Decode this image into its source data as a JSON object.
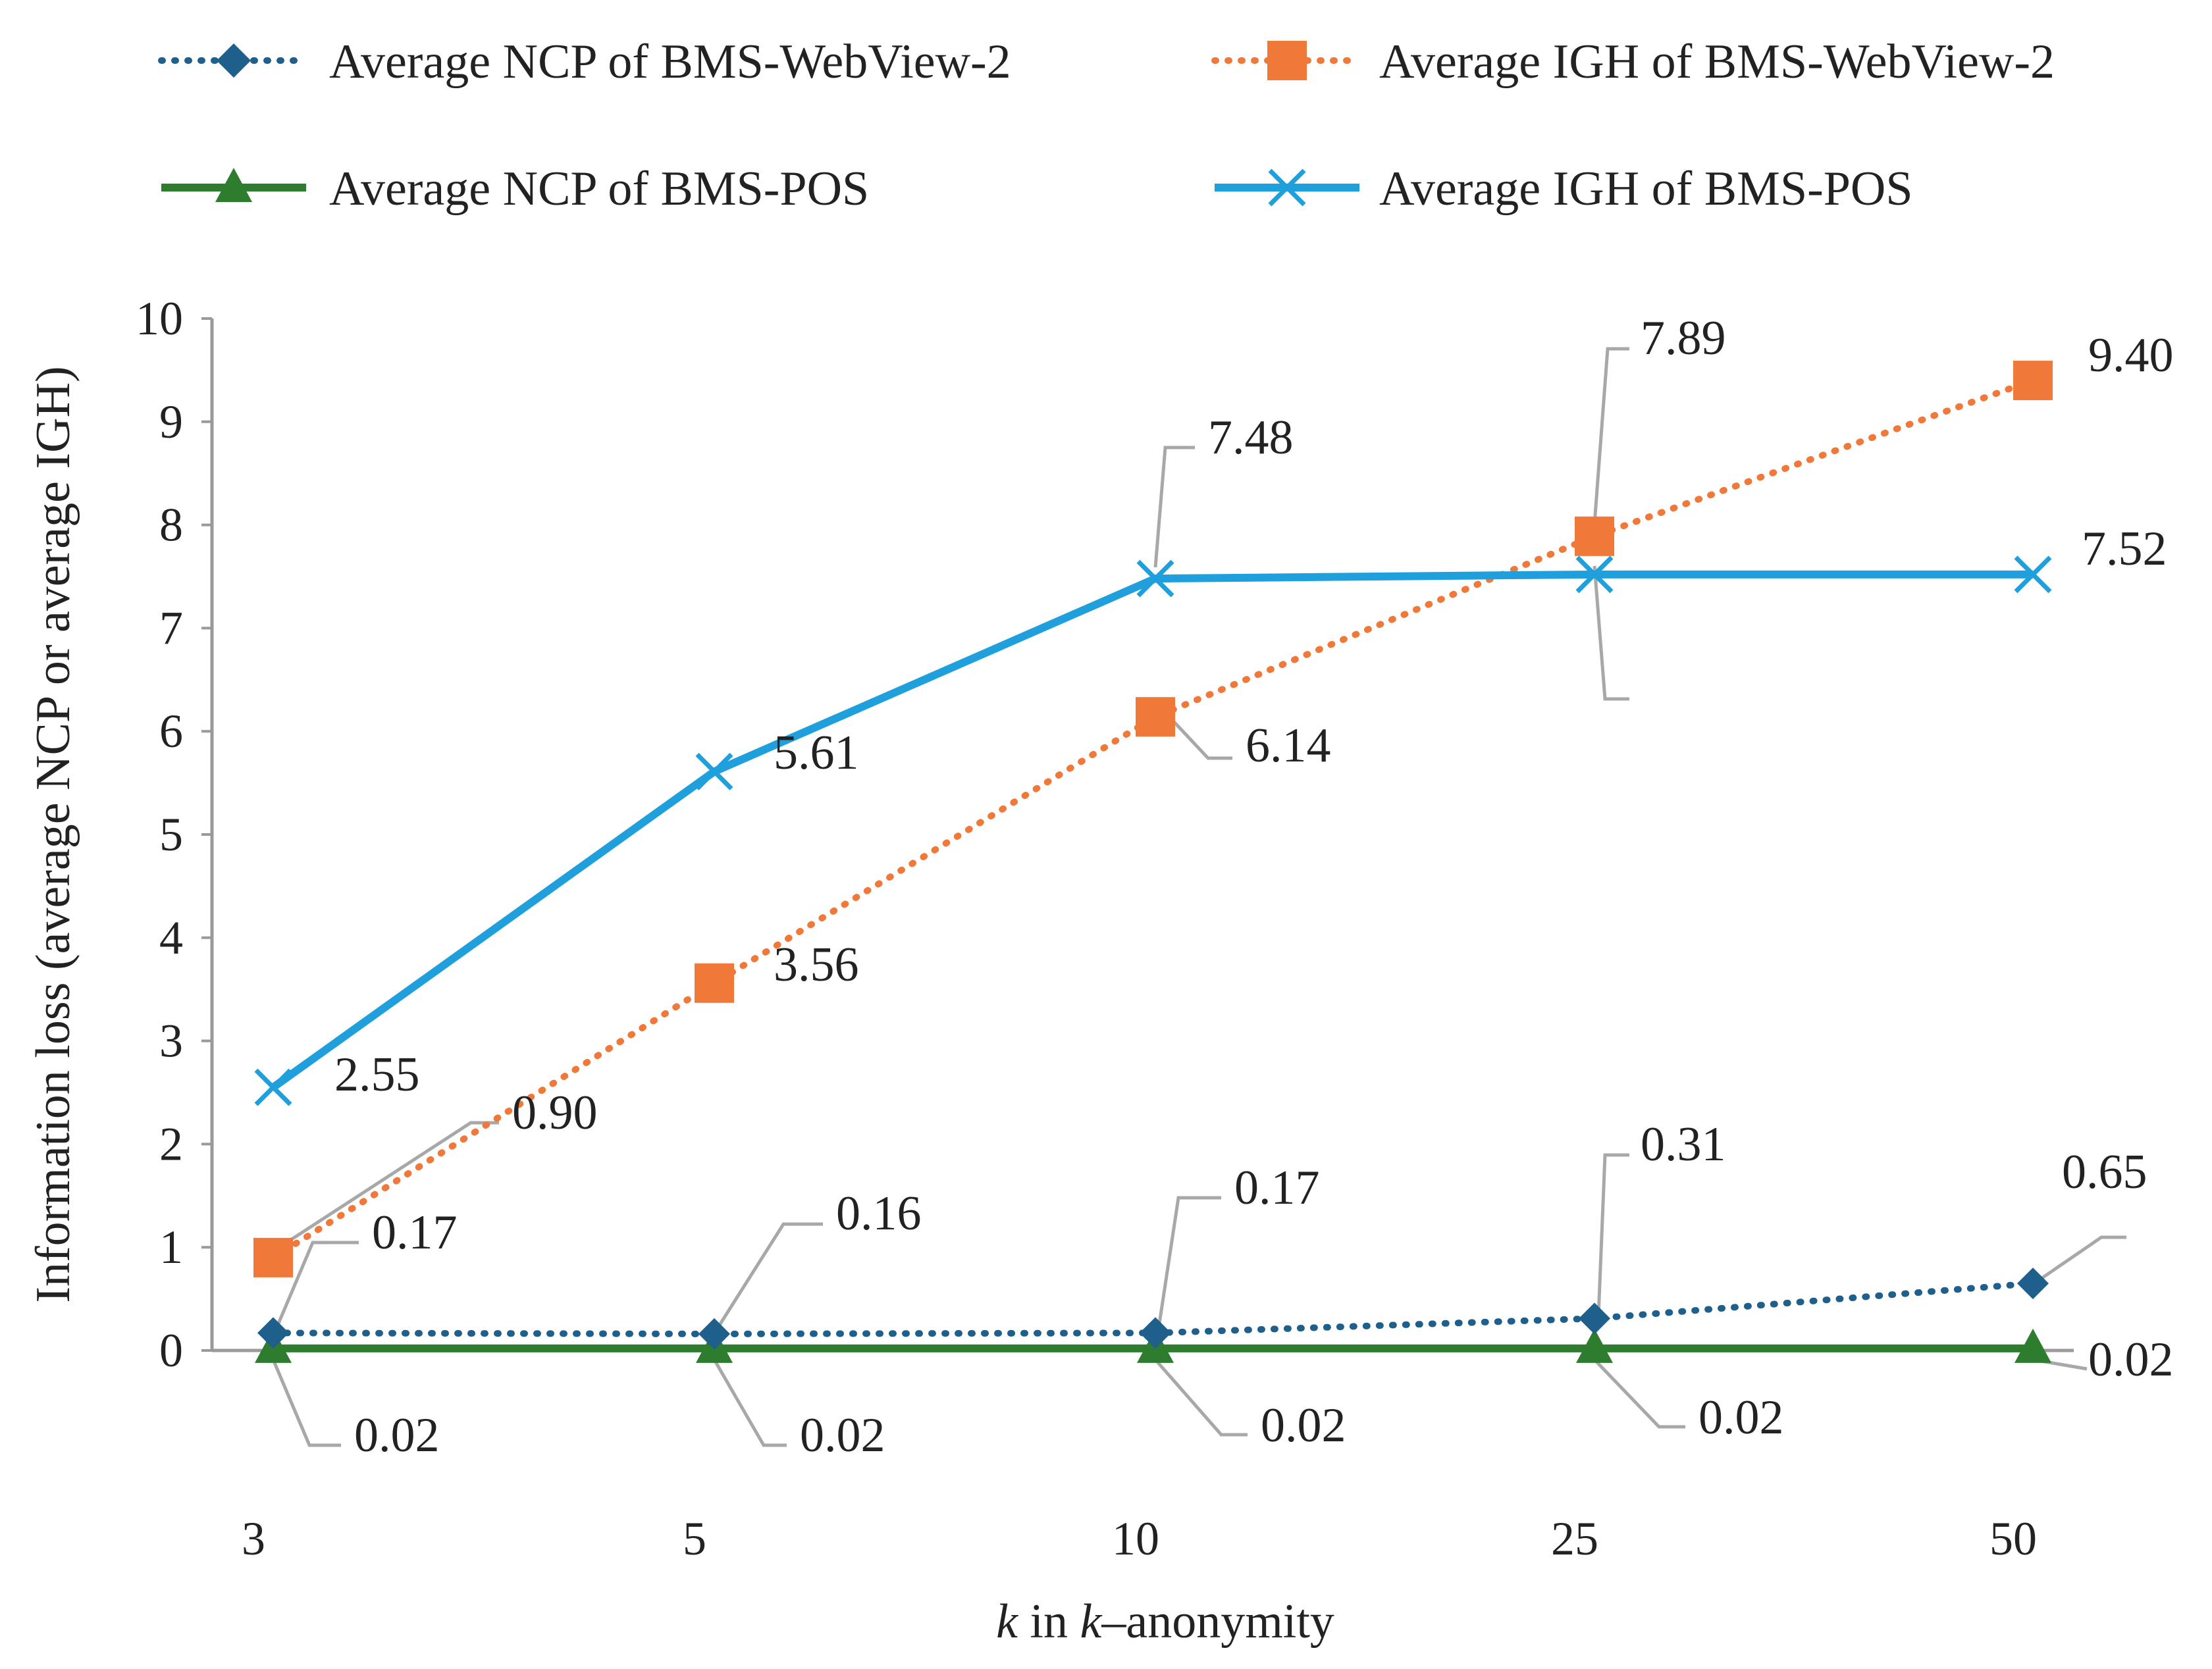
{
  "chart_data": {
    "type": "line",
    "title": "",
    "xlabel_prefix": "k",
    "xlabel_mid": " in ",
    "xlabel_k": "k",
    "xlabel_suffix": "–anonymity",
    "ylabel": "Information loss (average NCP or average IGH)",
    "categories": [
      "3",
      "5",
      "10",
      "25",
      "50"
    ],
    "ylim": [
      0,
      10
    ],
    "yticks": [
      "0",
      "1",
      "2",
      "3",
      "4",
      "5",
      "6",
      "7",
      "8",
      "9",
      "10"
    ],
    "grid": false,
    "legend_position": "top",
    "series": [
      {
        "name": "Average NCP of BMS-WebView-2",
        "color": "#1f5f8b",
        "style": "dotted",
        "marker": "diamond",
        "values": [
          0.17,
          0.16,
          0.17,
          0.31,
          0.65
        ],
        "labels": [
          "0.17",
          "0.16",
          "0.17",
          "0.31",
          "0.65"
        ]
      },
      {
        "name": "Average IGH of BMS-WebView-2",
        "color": "#f0793a",
        "style": "dotted",
        "marker": "square",
        "values": [
          0.9,
          3.56,
          6.14,
          7.89,
          9.4
        ],
        "labels": [
          "0.90",
          "3.56",
          "6.14",
          "7.89",
          "9.40"
        ]
      },
      {
        "name": "Average NCP of BMS-POS",
        "color": "#2e7d2e",
        "style": "solid",
        "marker": "triangle",
        "values": [
          0.02,
          0.02,
          0.02,
          0.02,
          0.02
        ],
        "labels": [
          "0.02",
          "0.02",
          "0.02",
          "0.02",
          "0.02"
        ]
      },
      {
        "name": "Average IGH of BMS-POS",
        "color": "#1fa0dc",
        "style": "solid",
        "marker": "x",
        "values": [
          2.55,
          5.61,
          7.48,
          7.52,
          7.52
        ],
        "labels": [
          "2.55",
          "5.61",
          "7.48",
          "",
          "7.52"
        ]
      }
    ]
  }
}
